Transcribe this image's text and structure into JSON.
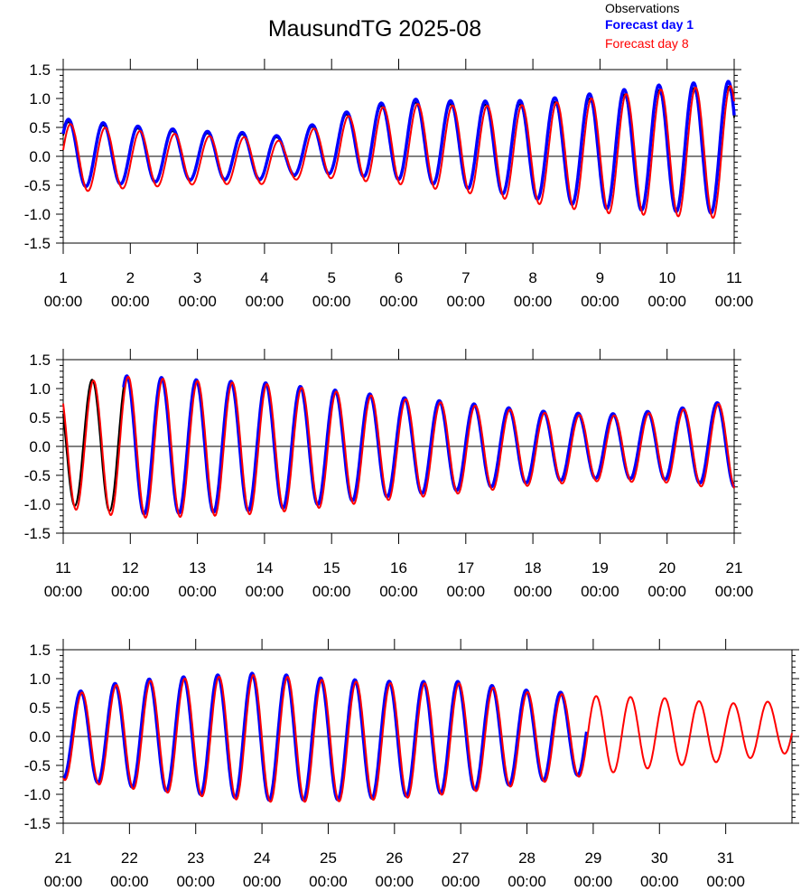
{
  "title": "MausundTG 2025-08",
  "legend": [
    {
      "label": "Observations",
      "color": "#000000",
      "bold": false
    },
    {
      "label": "Forecast day 1",
      "color": "#0000ff",
      "bold": true
    },
    {
      "label": "Forecast day 8",
      "color": "#ff0000",
      "bold": false
    }
  ],
  "chart_data": [
    {
      "type": "line",
      "xlim": [
        1,
        11
      ],
      "ylim": [
        -1.5,
        1.5
      ],
      "yticks": [
        "1.5",
        "1.0",
        "0.5",
        "0.0",
        "-0.5",
        "-1.0",
        "-1.5"
      ],
      "xticks": [
        {
          "day": "1",
          "time": "00:00"
        },
        {
          "day": "2",
          "time": "00:00"
        },
        {
          "day": "3",
          "time": "00:00"
        },
        {
          "day": "4",
          "time": "00:00"
        },
        {
          "day": "5",
          "time": "00:00"
        },
        {
          "day": "6",
          "time": "00:00"
        },
        {
          "day": "7",
          "time": "00:00"
        },
        {
          "day": "8",
          "time": "00:00"
        },
        {
          "day": "9",
          "time": "00:00"
        },
        {
          "day": "10",
          "time": "00:00"
        },
        {
          "day": "11",
          "time": "00:00"
        }
      ],
      "amplitude_day": [
        1,
        2,
        3,
        4,
        4.3,
        5,
        6,
        7,
        8,
        9,
        10,
        11
      ],
      "amplitude_value": [
        0.6,
        0.5,
        0.42,
        0.4,
        0.33,
        0.5,
        0.7,
        0.75,
        0.85,
        1.0,
        1.1,
        1.15
      ],
      "offset_day": [
        1,
        4,
        4.3,
        5,
        6,
        7,
        8,
        9,
        10,
        11
      ],
      "offset_value": [
        0.05,
        0.0,
        0.0,
        0.2,
        0.3,
        0.2,
        0.12,
        0.1,
        0.15,
        0.15
      ],
      "series": [
        {
          "color": "#000000",
          "start": 1,
          "end": 11,
          "scale": 0.92,
          "shift": 0.0,
          "phase": 0.0,
          "extra": -0.05
        },
        {
          "color": "#0000ff",
          "start": 1,
          "end": 11,
          "scale": 1.0,
          "shift": 0.0,
          "phase": 0.0,
          "extra": 0.0
        },
        {
          "color": "#ff0000",
          "start": 1,
          "end": 11,
          "scale": 1.0,
          "shift": -0.08,
          "phase": 0.03,
          "extra": 0.0
        }
      ]
    },
    {
      "type": "line",
      "xlim": [
        11,
        21
      ],
      "ylim": [
        -1.5,
        1.5
      ],
      "yticks": [
        "1.5",
        "1.0",
        "0.5",
        "0.0",
        "-0.5",
        "-1.0",
        "-1.5"
      ],
      "xticks": [
        {
          "day": "11",
          "time": "00:00"
        },
        {
          "day": "12",
          "time": "00:00"
        },
        {
          "day": "13",
          "time": "00:00"
        },
        {
          "day": "14",
          "time": "00:00"
        },
        {
          "day": "15",
          "time": "00:00"
        },
        {
          "day": "16",
          "time": "00:00"
        },
        {
          "day": "17",
          "time": "00:00"
        },
        {
          "day": "18",
          "time": "00:00"
        },
        {
          "day": "19",
          "time": "00:00"
        },
        {
          "day": "20",
          "time": "00:00"
        },
        {
          "day": "21",
          "time": "00:00"
        }
      ],
      "amplitude_day": [
        11,
        12,
        13,
        14,
        15,
        16,
        17,
        18,
        19,
        20,
        21
      ],
      "amplitude_value": [
        1.05,
        1.2,
        1.15,
        1.1,
        0.98,
        0.85,
        0.75,
        0.62,
        0.55,
        0.6,
        0.75
      ],
      "offset_day": [
        11,
        13,
        15,
        17,
        18,
        19,
        21
      ],
      "offset_value": [
        0.05,
        0.0,
        0.0,
        0.0,
        0.0,
        0.0,
        0.05
      ],
      "series": [
        {
          "color": "#000000",
          "start": 11,
          "end": 16.1,
          "scale": 1.0,
          "shift": 0.0,
          "phase": 0.0,
          "extra": 0.0
        },
        {
          "color": "#0000ff",
          "start": 11.9,
          "end": 21,
          "scale": 1.0,
          "shift": 0.0,
          "phase": 0.0,
          "extra": 0.0
        },
        {
          "color": "#ff0000",
          "start": 11,
          "end": 21,
          "scale": 1.02,
          "shift": -0.04,
          "phase": 0.02,
          "extra": 0.0
        }
      ]
    },
    {
      "type": "line",
      "xlim": [
        21,
        32
      ],
      "ylim": [
        -1.5,
        1.5
      ],
      "yticks": [
        "1.5",
        "1.0",
        "0.5",
        "0.0",
        "-0.5",
        "-1.0",
        "-1.5"
      ],
      "xticks": [
        {
          "day": "21",
          "time": "00:00"
        },
        {
          "day": "22",
          "time": "00:00"
        },
        {
          "day": "23",
          "time": "00:00"
        },
        {
          "day": "24",
          "time": "00:00"
        },
        {
          "day": "25",
          "time": "00:00"
        },
        {
          "day": "26",
          "time": "00:00"
        },
        {
          "day": "27",
          "time": "00:00"
        },
        {
          "day": "28",
          "time": "00:00"
        },
        {
          "day": "29",
          "time": "00:00"
        },
        {
          "day": "30",
          "time": "00:00"
        },
        {
          "day": "31",
          "time": "00:00"
        }
      ],
      "amplitude_day": [
        21,
        22,
        23,
        24,
        25,
        26,
        27,
        28,
        29,
        30,
        31,
        32
      ],
      "amplitude_value": [
        0.72,
        0.92,
        1.02,
        1.1,
        1.05,
        1.0,
        0.95,
        0.8,
        0.68,
        0.6,
        0.5,
        0.45
      ],
      "offset_day": [
        21,
        22,
        24,
        25,
        26,
        27,
        28,
        29,
        30,
        31,
        32
      ],
      "offset_value": [
        0.0,
        0.05,
        0.0,
        -0.05,
        -0.05,
        0.0,
        0.0,
        0.05,
        0.1,
        0.1,
        0.2
      ],
      "series": [
        {
          "color": "#0000ff",
          "start": 21,
          "end": 28.9,
          "scale": 1.0,
          "shift": 0.0,
          "phase": 0.0,
          "extra": 0.0
        },
        {
          "color": "#ff0000",
          "start": 21,
          "end": 32,
          "scale": 1.0,
          "shift": -0.03,
          "phase": 0.02,
          "extra": 0.0
        }
      ]
    }
  ]
}
